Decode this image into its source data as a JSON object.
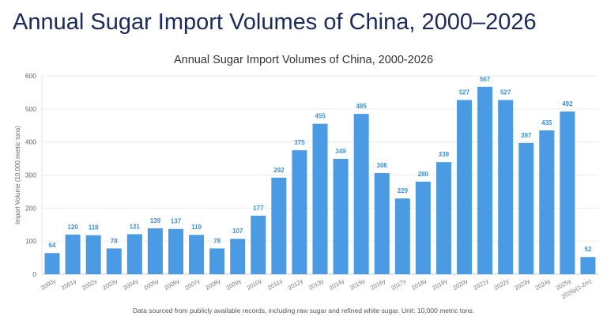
{
  "page": {
    "heading": "Annual Sugar Import Volumes of China, 2000–2026",
    "footnote": "Data sourced from publicly available records, including raw sugar and refined white sugar. Unit: 10,000 metric tons."
  },
  "chart_data": {
    "type": "bar",
    "title": "Annual Sugar Import Volumes of China, 2000-2026",
    "xlabel": "",
    "ylabel": "Import Volume (10,000 metric tons)",
    "ylim": [
      0,
      600
    ],
    "yticks": [
      0,
      100,
      200,
      300,
      400,
      500,
      600
    ],
    "grid": true,
    "bar_color": "#4a9be3",
    "label_color": "#3f8fd8",
    "categories": [
      "2000y",
      "2001y",
      "2002y",
      "2003y",
      "2004y",
      "2005y",
      "2006y",
      "2007y",
      "2008y",
      "2009y",
      "2010y",
      "2011y",
      "2012y",
      "2013y",
      "2014y",
      "2015y",
      "2016y",
      "2017y",
      "2018y",
      "2019y",
      "2020y",
      "2021y",
      "2022y",
      "2023y",
      "2024y",
      "2025y",
      "2026y(1-2m)"
    ],
    "values": [
      64,
      120,
      118,
      78,
      121,
      139,
      137,
      119,
      78,
      107,
      177,
      292,
      375,
      455,
      349,
      485,
      306,
      229,
      280,
      339,
      527,
      567,
      527,
      397,
      435,
      492,
      52
    ]
  }
}
